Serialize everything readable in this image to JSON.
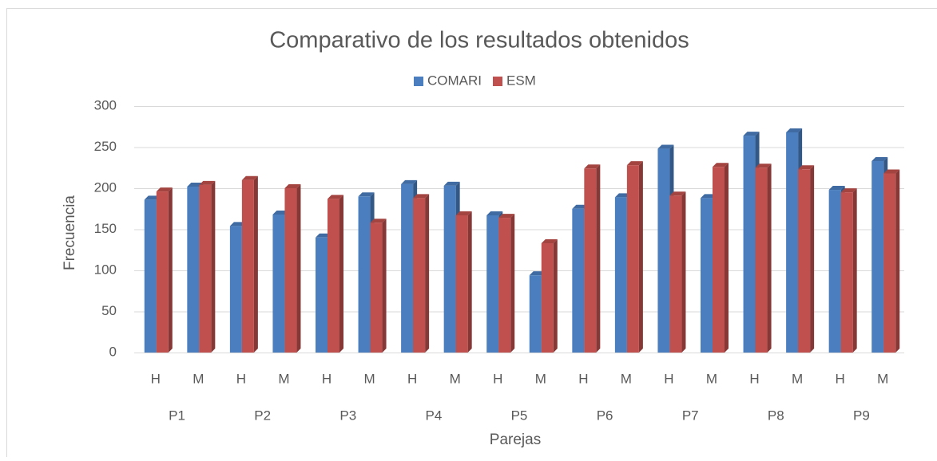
{
  "chart_data": {
    "type": "bar3d",
    "title": "Comparativo de los resultados obtenidos",
    "x_label": "Parejas",
    "y_label": "Frecuencia",
    "categories": [
      "H",
      "M",
      "H",
      "M",
      "H",
      "M",
      "H",
      "M",
      "H",
      "M",
      "H",
      "M",
      "H",
      "M",
      "H",
      "M",
      "H",
      "M"
    ],
    "groups": [
      "P1",
      "P2",
      "P3",
      "P4",
      "P5",
      "P6",
      "P7",
      "P8",
      "P9"
    ],
    "series": [
      {
        "name": "COMARI",
        "color": "#4a7ebf",
        "values": [
          186,
          202,
          154,
          168,
          140,
          190,
          205,
          203,
          167,
          94,
          175,
          189,
          248,
          188,
          264,
          268,
          198,
          233
        ]
      },
      {
        "name": "ESM",
        "color": "#c0504d",
        "values": [
          196,
          204,
          210,
          200,
          187,
          158,
          188,
          167,
          164,
          133,
          224,
          228,
          191,
          226,
          225,
          223,
          195,
          218
        ]
      }
    ],
    "ylim": [
      0,
      300
    ],
    "yticks": [
      0,
      50,
      100,
      150,
      200,
      250,
      300
    ],
    "grid": true,
    "legend": "top"
  }
}
